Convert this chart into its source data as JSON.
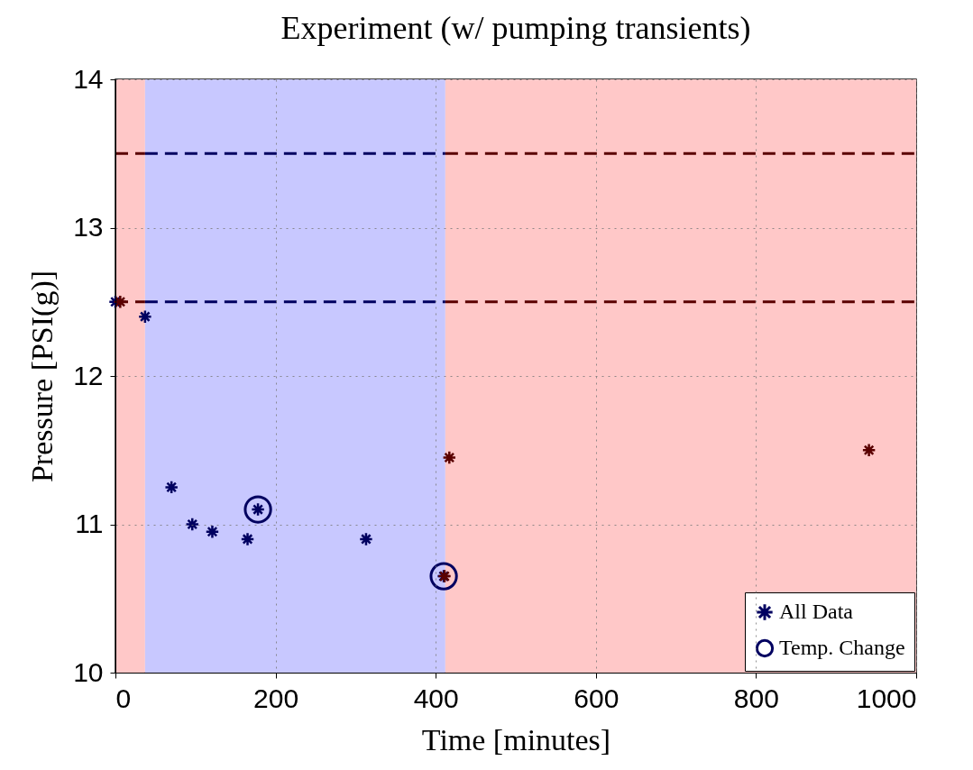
{
  "chart_data": {
    "type": "scatter",
    "title": "Experiment (w/ pumping transients)",
    "xlabel": "Time [minutes]",
    "ylabel": "Pressure [PSI(g)]",
    "xlim": [
      0,
      1000
    ],
    "xticks": [
      0,
      200,
      400,
      600,
      800,
      {
        "value": 1000,
        "label": "1000"
      }
    ],
    "ylim": [
      10,
      14
    ],
    "yticks": [
      10,
      11,
      12,
      13,
      14
    ],
    "grid": true,
    "legend": "bottom right",
    "bands": [
      {
        "axis": "x",
        "from": 0,
        "to": 37,
        "color": "#ffc8c8"
      },
      {
        "axis": "x",
        "from": 37,
        "to": 412,
        "color": "#c8c8ff"
      },
      {
        "axis": "x",
        "from": 412,
        "to": 1000,
        "color": "#ffc8c8"
      }
    ],
    "series": [
      {
        "type": "line",
        "x": [
          0,
          37
        ],
        "values": [
          13.5,
          13.5
        ],
        "color": "#5a0000",
        "line_style": "dashed",
        "marker": "none"
      },
      {
        "type": "line",
        "x": [
          37,
          412
        ],
        "values": [
          13.5,
          13.5
        ],
        "color": "#000060",
        "line_style": "dashed",
        "marker": "none"
      },
      {
        "type": "line",
        "x": [
          412,
          1000
        ],
        "values": [
          13.5,
          13.5
        ],
        "color": "#5a0000",
        "line_style": "dashed",
        "marker": "none"
      },
      {
        "type": "line",
        "x": [
          0,
          37
        ],
        "values": [
          12.5,
          12.5
        ],
        "color": "#5a0000",
        "line_style": "dashed",
        "marker": "none"
      },
      {
        "type": "line",
        "x": [
          37,
          412
        ],
        "values": [
          12.5,
          12.5
        ],
        "color": "#000060",
        "line_style": "dashed",
        "marker": "none"
      },
      {
        "type": "line",
        "x": [
          412,
          1000
        ],
        "values": [
          12.5,
          12.5
        ],
        "color": "#5a0000",
        "line_style": "dashed",
        "marker": "none"
      },
      {
        "name": "All Data",
        "x": [
          0,
          37,
          70,
          96,
          121,
          165,
          178,
          313,
          410
        ],
        "values": [
          12.5,
          12.4,
          11.25,
          11.0,
          10.95,
          10.9,
          11.1,
          10.9,
          10.65
        ],
        "color": "#000060",
        "marker": "cross"
      },
      {
        "x": [
          6,
          411,
          417,
          941
        ],
        "values": [
          12.5,
          10.65,
          11.45,
          11.5
        ],
        "color": "#5a0000",
        "marker": "cross"
      },
      {
        "name": "Temp. Change",
        "x": [
          178,
          410
        ],
        "values": [
          11.1,
          10.65
        ],
        "color": "#000060",
        "marker": "circle"
      }
    ]
  }
}
